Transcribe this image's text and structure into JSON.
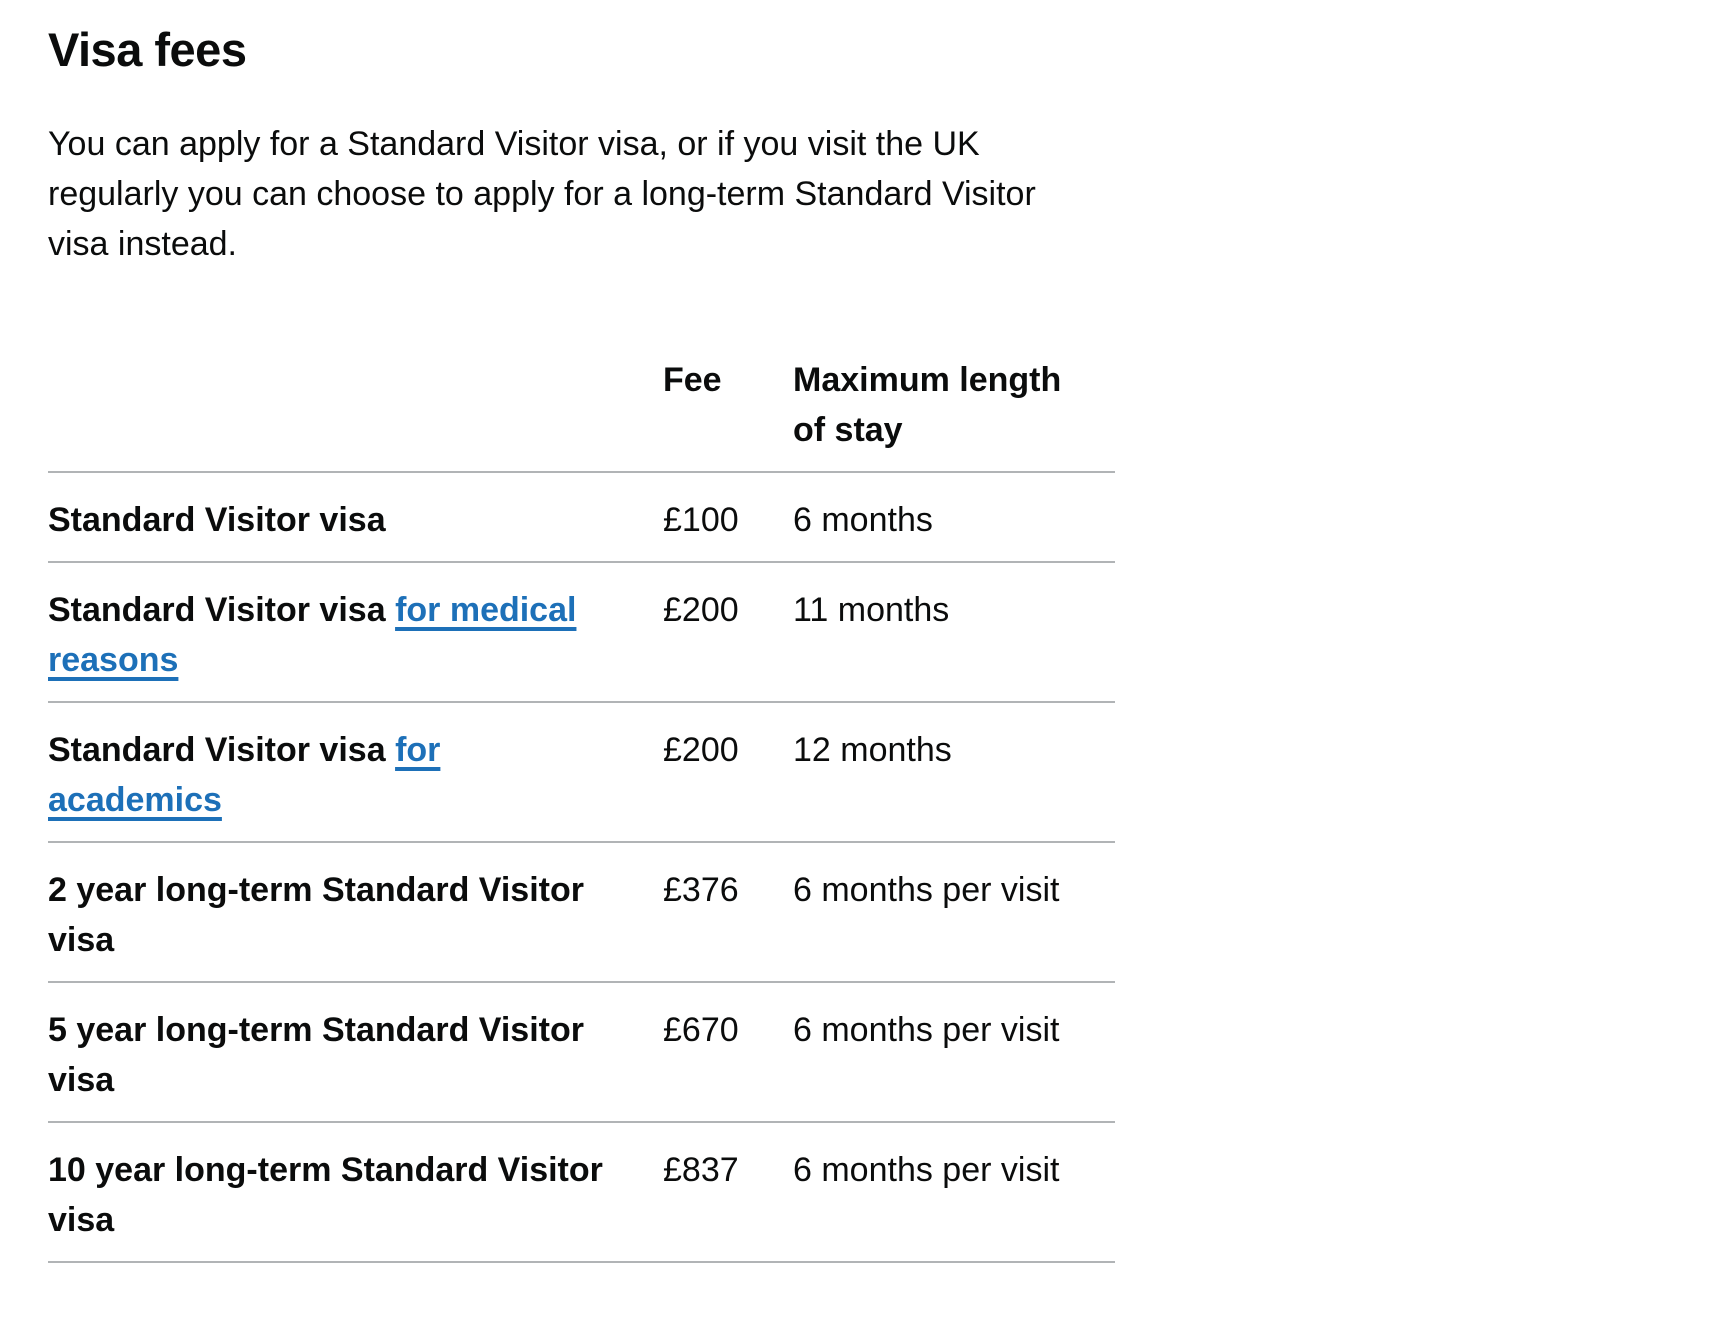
{
  "page": {
    "heading": "Visa fees",
    "intro_lines": [
      "You can apply for a Standard Visitor visa, or if you visit the UK",
      "regularly you can choose to apply for a long-term Standard Visitor",
      "visa instead."
    ]
  },
  "table": {
    "headers": {
      "name": "",
      "fee": "Fee",
      "max_stay": "Maximum length of stay"
    },
    "rows": [
      {
        "name": "Standard Visitor visa",
        "fee": "£100",
        "max_stay": "6 months"
      },
      {
        "name_prefix": "Standard Visitor visa ",
        "link_text": "for medical reasons",
        "fee": "£200",
        "max_stay": "11 months"
      },
      {
        "name_prefix": "Standard Visitor visa ",
        "link_text": "for academics",
        "fee": "£200",
        "max_stay": "12 months"
      },
      {
        "name": "2 year long-term Standard Visitor visa",
        "fee": "£376",
        "max_stay": "6 months per visit"
      },
      {
        "name": "5 year long-term Standard Visitor visa",
        "fee": "£670",
        "max_stay": "6 months per visit"
      },
      {
        "name": "10 year long-term Standard Visitor visa",
        "fee": "£837",
        "max_stay": "6 months per visit"
      }
    ]
  },
  "colors": {
    "text": "#0b0c0c",
    "link": "#1d70b8",
    "border": "#b1b4b6",
    "background": "#ffffff"
  }
}
